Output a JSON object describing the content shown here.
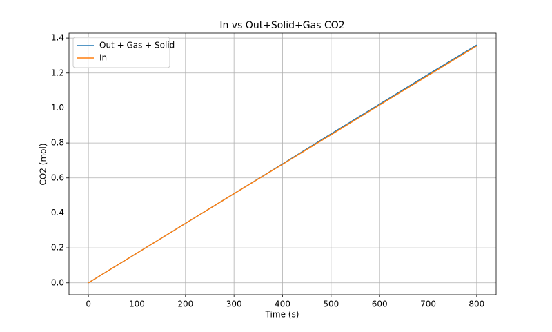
{
  "chart_data": {
    "type": "line",
    "title": "In vs Out+Solid+Gas CO2",
    "x_label": "Time (s)",
    "y_label": "CO2 (mol)",
    "x": [
      0,
      100,
      200,
      300,
      400,
      500,
      600,
      700,
      800
    ],
    "series": [
      {
        "name": "Out + Gas + Solid",
        "color": "#1f77b4",
        "values": [
          0,
          0.17,
          0.34,
          0.51,
          0.68,
          0.852,
          1.022,
          1.192,
          1.36
        ]
      },
      {
        "name": "In",
        "color": "#ff7f0e",
        "values": [
          0,
          0.17,
          0.34,
          0.51,
          0.678,
          0.847,
          1.017,
          1.186,
          1.355
        ]
      }
    ],
    "xlim": [
      -40,
      840
    ],
    "ylim": [
      -0.068,
      1.428
    ],
    "xticks": [
      0,
      100,
      200,
      300,
      400,
      500,
      600,
      700,
      800
    ],
    "yticks": [
      {
        "value": 0,
        "label": "0.0"
      },
      0.2,
      0.4,
      0.6,
      0.8,
      {
        "value": 1,
        "label": "1.0"
      },
      1.2,
      1.4
    ],
    "grid": true,
    "legend": "upper left"
  }
}
